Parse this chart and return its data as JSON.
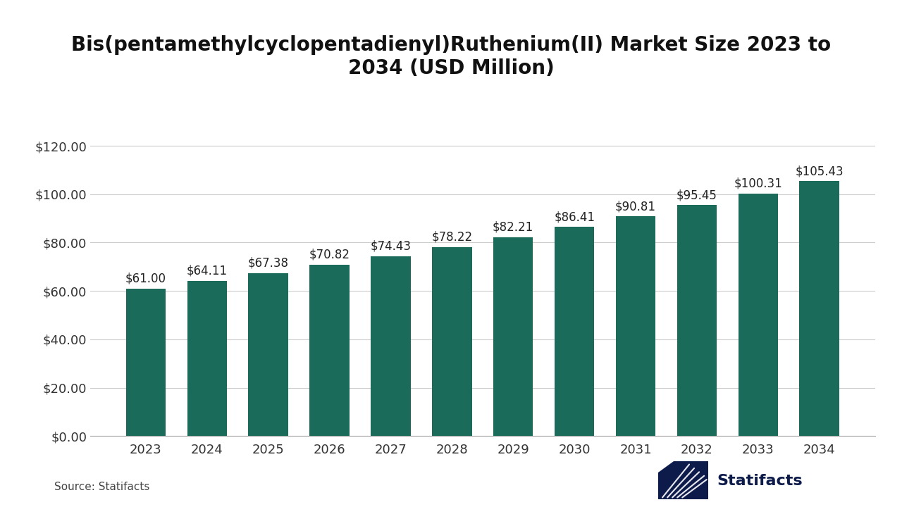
{
  "title": "Bis(pentamethylcyclopentadienyl)Ruthenium(II) Market Size 2023 to\n2034 (USD Million)",
  "years": [
    2023,
    2024,
    2025,
    2026,
    2027,
    2028,
    2029,
    2030,
    2031,
    2032,
    2033,
    2034
  ],
  "values": [
    61.0,
    64.11,
    67.38,
    70.82,
    74.43,
    78.22,
    82.21,
    86.41,
    90.81,
    95.45,
    100.31,
    105.43
  ],
  "labels": [
    "$61.00",
    "$64.11",
    "$67.38",
    "$70.82",
    "$74.43",
    "$78.22",
    "$82.21",
    "$86.41",
    "$90.81",
    "$95.45",
    "$100.31",
    "$105.43"
  ],
  "bar_color": "#1a6b5a",
  "background_color": "#ffffff",
  "ylim": [
    0,
    130
  ],
  "yticks": [
    0,
    20,
    40,
    60,
    80,
    100,
    120
  ],
  "ytick_labels": [
    "$0.00",
    "$20.00",
    "$40.00",
    "$60.00",
    "$80.00",
    "$100.00",
    "$120.00"
  ],
  "source_text": "Source: Statifacts",
  "title_fontsize": 20,
  "tick_fontsize": 13,
  "label_fontsize": 12,
  "source_fontsize": 11,
  "grid_color": "#cccccc",
  "spine_color": "#aaaaaa",
  "logo_color": "#0d1b4b"
}
